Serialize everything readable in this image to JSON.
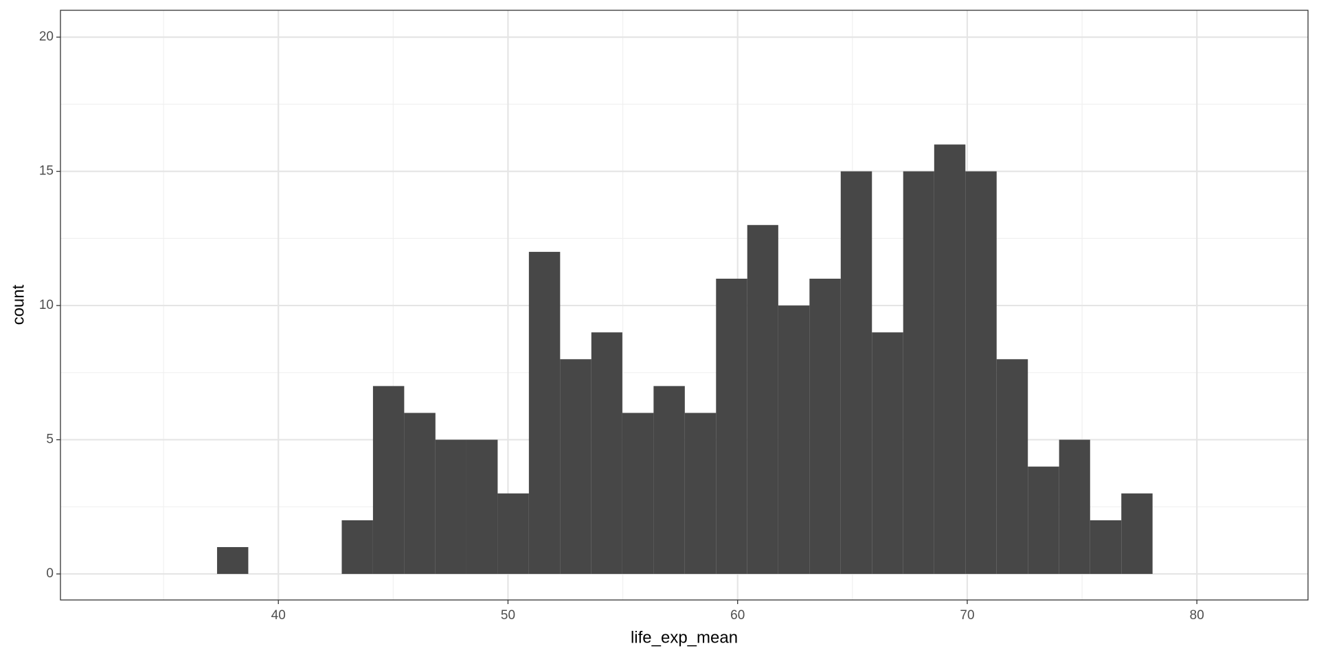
{
  "chart_data": {
    "type": "histogram",
    "x_label": "life_exp_mean",
    "y_label": "count",
    "bins": [
      37.33,
      38.69,
      40.05,
      41.4,
      42.76,
      44.12,
      45.48,
      46.84,
      48.19,
      49.55,
      50.91,
      52.27,
      53.63,
      54.98,
      56.34,
      57.7,
      59.06,
      60.42,
      61.77,
      63.13,
      64.49,
      65.85,
      67.21,
      68.56,
      69.92,
      71.28,
      72.64,
      74.0,
      75.35,
      76.71,
      78.07
    ],
    "counts": [
      1,
      0,
      0,
      0,
      2,
      7,
      6,
      5,
      5,
      3,
      12,
      8,
      9,
      6,
      7,
      6,
      11,
      13,
      10,
      11,
      15,
      9,
      15,
      16,
      15,
      8,
      4,
      5,
      2,
      3
    ],
    "color": "#474747",
    "xlim": [
      30.51,
      84.84
    ],
    "ylim": [
      -0.97,
      21.0
    ],
    "xticks": [
      40,
      50,
      60,
      70,
      80
    ],
    "yticks": [
      0,
      5,
      10,
      15,
      20
    ],
    "xminorticks": [
      35,
      45,
      55,
      65,
      75
    ],
    "yminorticks": [
      2.5,
      7.5,
      12.5,
      17.5
    ],
    "grid": true
  }
}
